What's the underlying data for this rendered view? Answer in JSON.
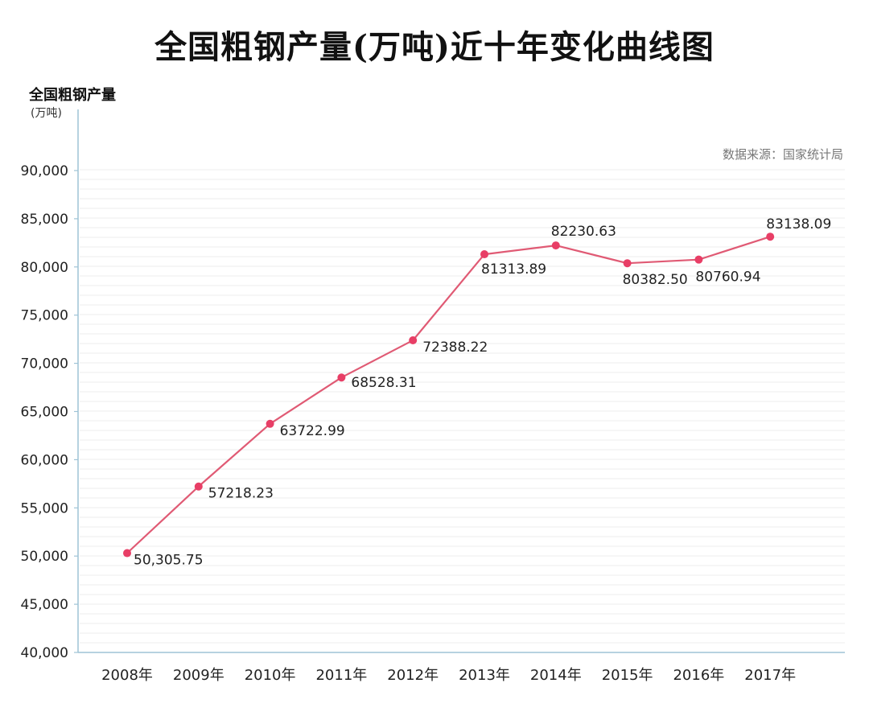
{
  "chart_data": {
    "type": "line",
    "title": "全国粗钢产量(万吨)近十年变化曲线图",
    "ylabel": "全国粗钢产量",
    "yunit": "(万吨)",
    "source": "数据来源：国家统计局",
    "categories": [
      "2008年",
      "2009年",
      "2010年",
      "2011年",
      "2012年",
      "2013年",
      "2014年",
      "2015年",
      "2016年",
      "2017年"
    ],
    "values": [
      50305.75,
      57218.23,
      63722.99,
      68528.31,
      72388.22,
      81313.89,
      82230.63,
      80382.5,
      80760.94,
      83138.09
    ],
    "data_labels": [
      "50,305.75",
      "57218.23",
      "63722.99",
      "68528.31",
      "72388.22",
      "81313.89",
      "82230.63",
      "80382.50",
      "80760.94",
      "83138.09"
    ],
    "ylim": [
      40000,
      90000
    ],
    "yticks": [
      40000,
      45000,
      50000,
      55000,
      60000,
      65000,
      70000,
      75000,
      80000,
      85000,
      90000
    ],
    "ytick_labels": [
      "40,000",
      "45,000",
      "50,000",
      "55,000",
      "60,000",
      "65,000",
      "70,000",
      "75,000",
      "80,000",
      "85,000",
      "90,000"
    ],
    "grid": true,
    "colors": {
      "line": "#e05a74",
      "marker": "#e83e66",
      "axis": "#9ec3d6",
      "grid": "#eeeeee"
    }
  }
}
